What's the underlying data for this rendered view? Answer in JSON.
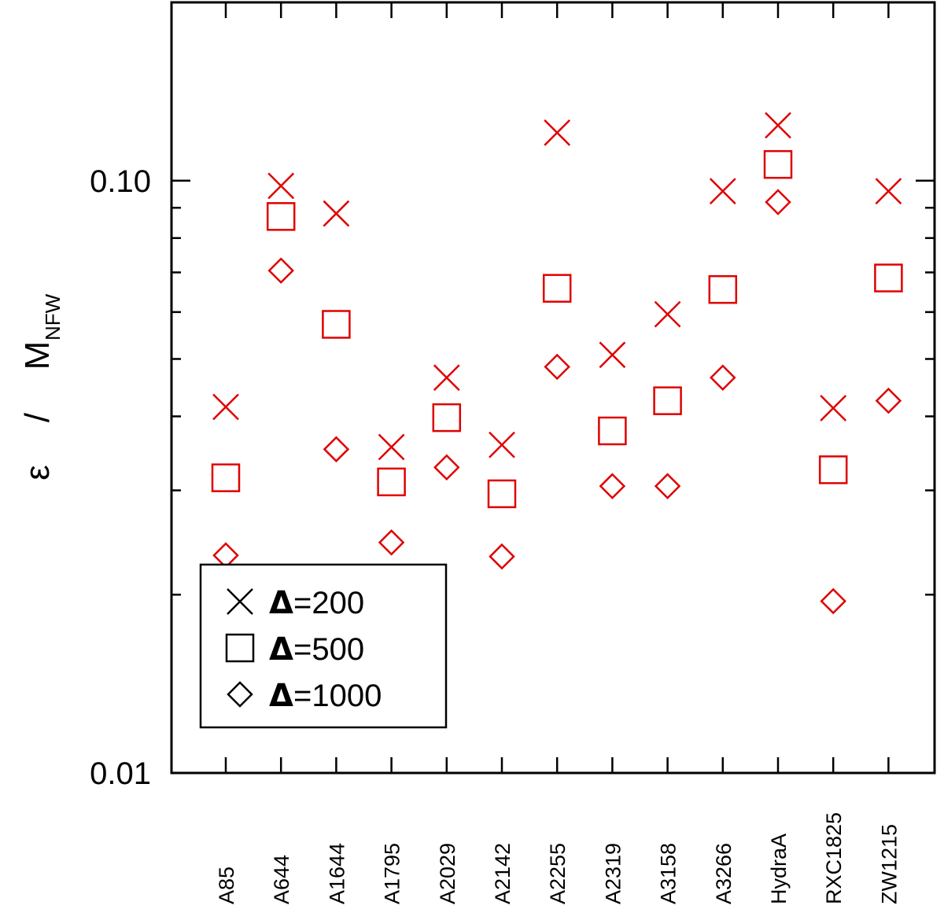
{
  "chart_data": {
    "type": "scatter",
    "ylabel_symbol": "ε",
    "ylabel_separator": "/",
    "ylabel_main": "M",
    "ylabel_subscript": "NFW",
    "yscale": "log",
    "ylim": [
      0.01,
      0.2
    ],
    "yticks": [
      {
        "value": 0.1,
        "label": "0.10"
      },
      {
        "value": 0.01,
        "label": "0.01"
      }
    ],
    "categories": [
      "A85",
      "A644",
      "A1644",
      "A1795",
      "A2029",
      "A2142",
      "A2255",
      "A2319",
      "A3158",
      "A3266",
      "HydraA",
      "RXC1825",
      "ZW1215"
    ],
    "marker_color": "#e00000",
    "series": [
      {
        "name": "Δ=200",
        "legend_symbol": "Δ",
        "legend_value": "=200",
        "marker": "x",
        "values": [
          0.0415,
          0.098,
          0.088,
          0.0355,
          0.0465,
          0.0358,
          0.1205,
          0.0508,
          0.0595,
          0.096,
          0.124,
          0.0413,
          0.096
        ]
      },
      {
        "name": "Δ=500",
        "legend_symbol": "Δ",
        "legend_value": "=500",
        "marker": "square",
        "values": [
          0.0315,
          0.087,
          0.0572,
          0.031,
          0.0398,
          0.0296,
          0.0658,
          0.0378,
          0.0425,
          0.0655,
          0.1065,
          0.0325,
          0.0685
        ]
      },
      {
        "name": "Δ=1000",
        "legend_symbol": "Δ",
        "legend_value": "=1000",
        "marker": "diamond",
        "values": [
          0.0233,
          0.0705,
          0.0352,
          0.0245,
          0.0328,
          0.0232,
          0.0485,
          0.0305,
          0.0305,
          0.0465,
          0.092,
          0.0195,
          0.0425
        ]
      }
    ],
    "legend_position": "bottom-left",
    "grid": false
  }
}
